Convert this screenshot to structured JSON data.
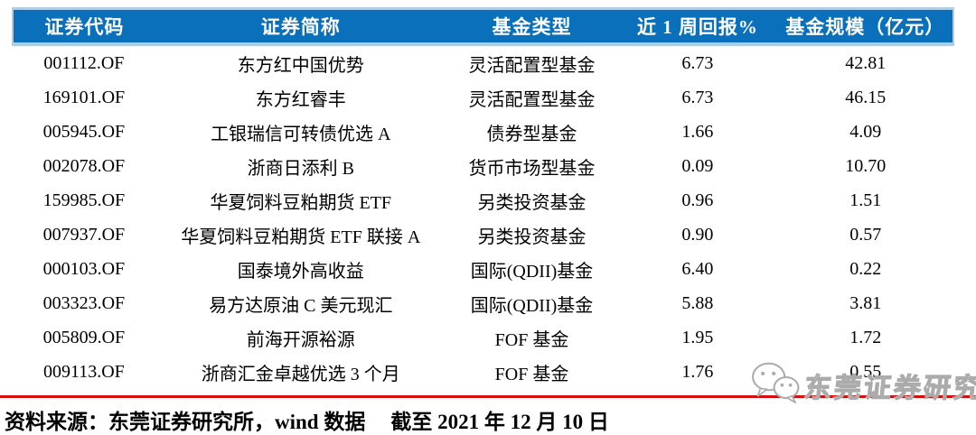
{
  "table": {
    "columns": [
      "证券代码",
      "证券简称",
      "基金类型",
      "近 1 周回报%",
      "基金规模（亿元）"
    ],
    "rows": [
      [
        "001112.OF",
        "东方红中国优势",
        "灵活配置型基金",
        "6.73",
        "42.81"
      ],
      [
        "169101.OF",
        "东方红睿丰",
        "灵活配置型基金",
        "6.73",
        "46.15"
      ],
      [
        "005945.OF",
        "工银瑞信可转债优选 A",
        "债券型基金",
        "1.66",
        "4.09"
      ],
      [
        "002078.OF",
        "浙商日添利 B",
        "货币市场型基金",
        "0.09",
        "10.70"
      ],
      [
        "159985.OF",
        "华夏饲料豆粕期货 ETF",
        "另类投资基金",
        "0.96",
        "1.51"
      ],
      [
        "007937.OF",
        "华夏饲料豆粕期货 ETF 联接 A",
        "另类投资基金",
        "0.90",
        "0.57"
      ],
      [
        "000103.OF",
        "国泰境外高收益",
        "国际(QDII)基金",
        "6.40",
        "0.22"
      ],
      [
        "003323.OF",
        "易方达原油 C 美元现汇",
        "国际(QDII)基金",
        "5.88",
        "3.81"
      ],
      [
        "005809.OF",
        "前海开源裕源",
        "FOF 基金",
        "1.95",
        "1.72"
      ],
      [
        "009113.OF",
        "浙商汇金卓越优选 3 个月",
        "FOF 基金",
        "1.76",
        "0.55"
      ]
    ]
  },
  "footer": {
    "source_text": "资料来源：东莞证券研究所，wind 数据",
    "date_text": "截至 2021 年 12 月 10 日"
  },
  "watermark": {
    "icon": "wechat-icon",
    "text": "东莞证券研究"
  },
  "colors": {
    "header_bg": "#0b70bc",
    "header_edge": "#aecde9",
    "header_text": "#ffffff",
    "red_divider": "#d90d0c",
    "body_text": "#000000",
    "watermark_gray": "#ababab"
  }
}
